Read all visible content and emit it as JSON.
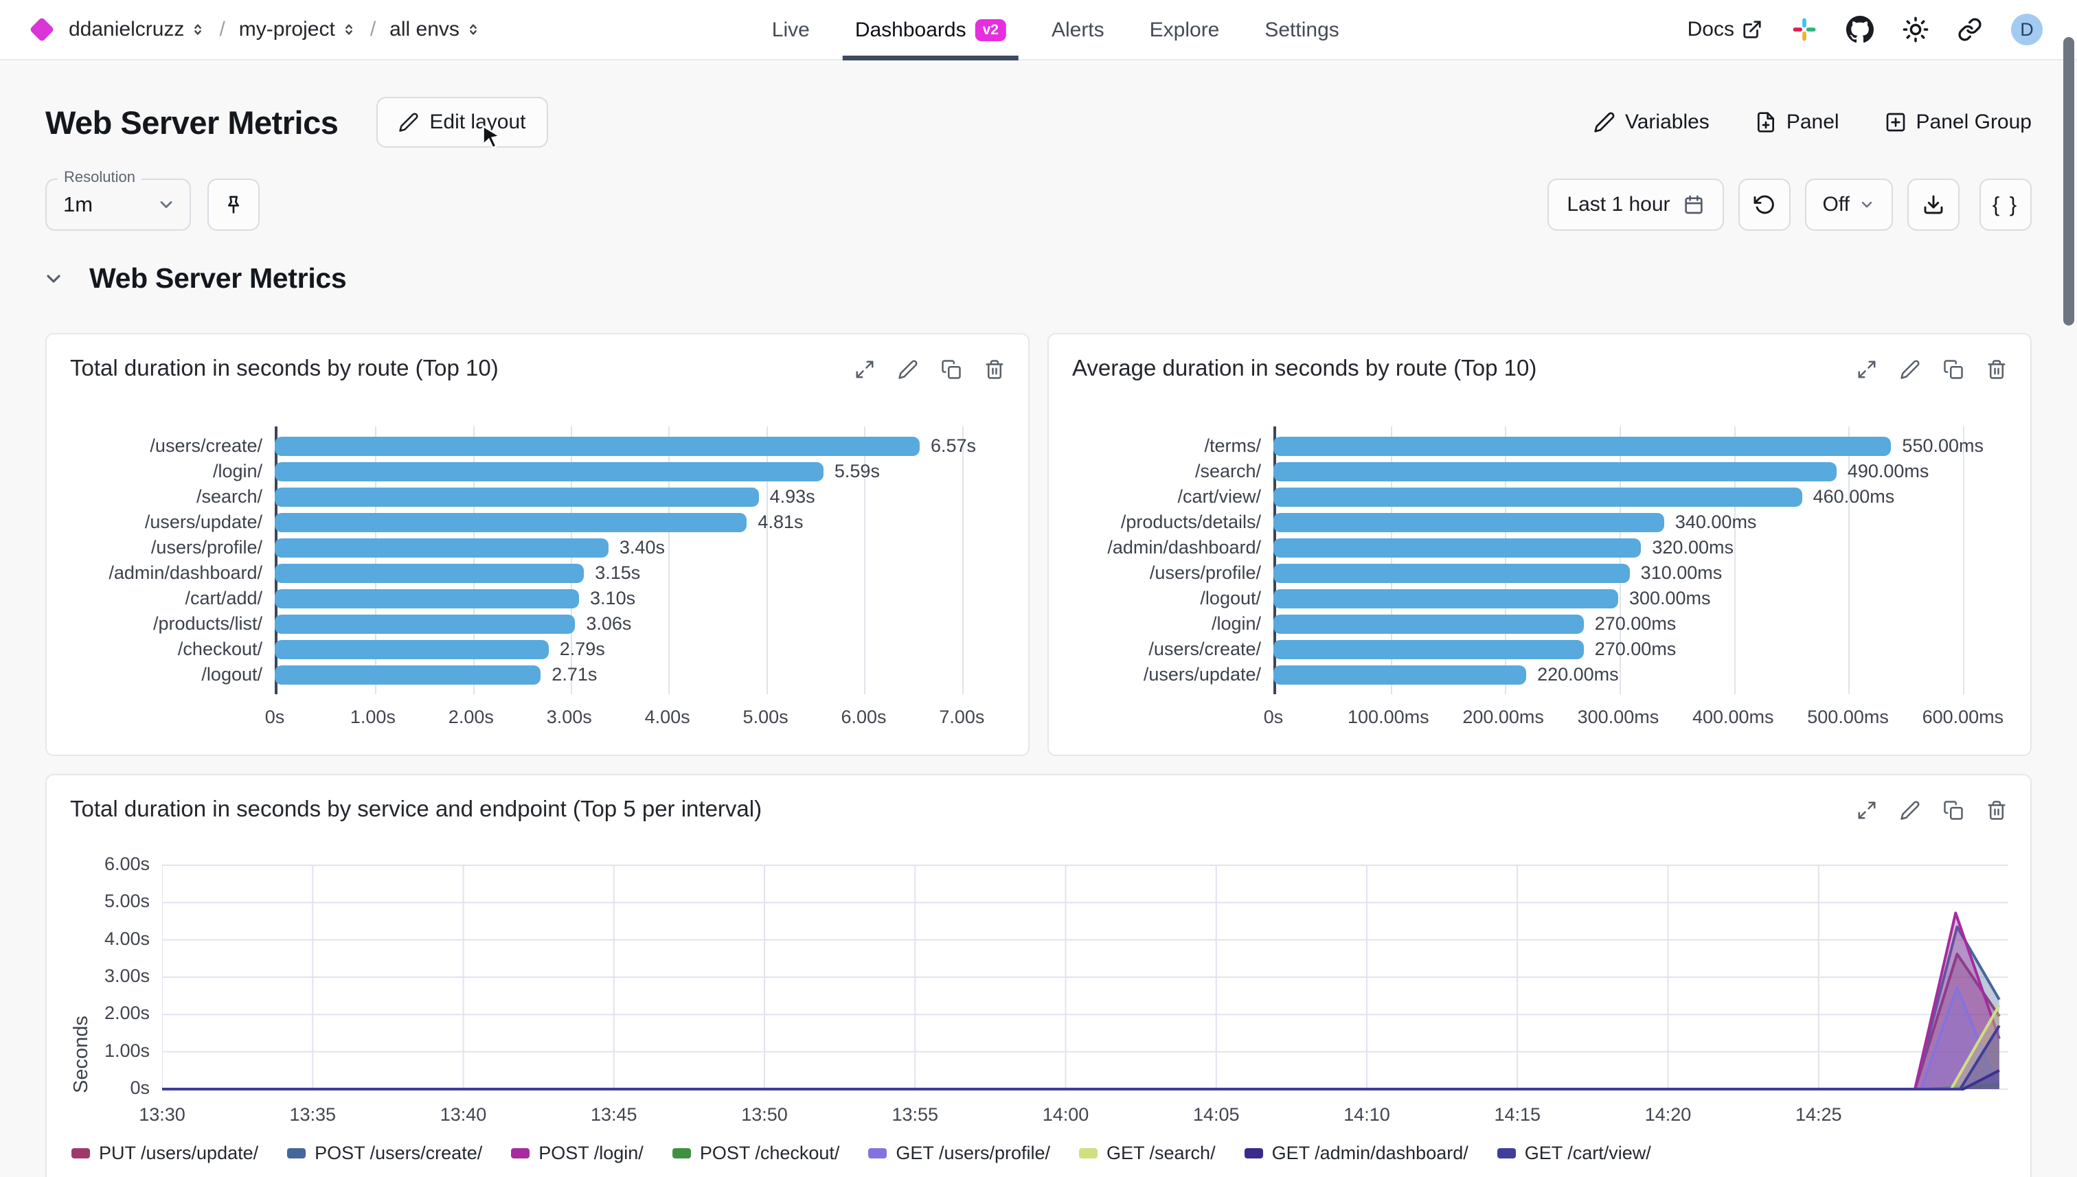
{
  "topbar": {
    "breadcrumb": {
      "org": "ddanielcruzz",
      "separator": "/",
      "project": "my-project",
      "env": "all envs"
    },
    "nav": [
      {
        "label": "Live",
        "active": false
      },
      {
        "label": "Dashboards",
        "active": true,
        "badge": "v2"
      },
      {
        "label": "Alerts",
        "active": false
      },
      {
        "label": "Explore",
        "active": false
      },
      {
        "label": "Settings",
        "active": false
      }
    ],
    "docs_label": "Docs",
    "avatar_letter": "D"
  },
  "header": {
    "title": "Web Server Metrics",
    "edit_layout_label": "Edit layout",
    "variables_label": "Variables",
    "panel_label": "Panel",
    "panel_group_label": "Panel Group"
  },
  "controls": {
    "resolution_label": "Resolution",
    "resolution_value": "1m",
    "time_range_label": "Last 1 hour",
    "refresh_mode_label": "Off",
    "braces_label": "{ }"
  },
  "section": {
    "title": "Web Server Metrics"
  },
  "icons": {
    "logo": "magenta-diamond",
    "selector": "chevrons-up-down",
    "docs": "external-link",
    "community": "slack-icon",
    "source": "github-icon",
    "theme": "sun-icon",
    "share": "link-icon",
    "panel_actions": [
      "expand-icon",
      "edit-icon",
      "copy-icon",
      "trash-icon"
    ]
  },
  "colors": {
    "bar_blue": "#57a9de",
    "badge_magenta": "#e62ee0",
    "logo_magenta": "#d935d9",
    "active_underline": "#3e4a5d",
    "axis_dark": "#3a4659",
    "gridline": "#e0e3e9",
    "card_border": "#e5e7eb",
    "page_bg": "#f8f8f9",
    "avatar_bg": "#a3cbf1"
  },
  "chart_data": [
    {
      "type": "bar",
      "orientation": "horizontal",
      "title": "Total duration in seconds by route (Top 10)",
      "categories": [
        "/users/create/",
        "/login/",
        "/search/",
        "/users/update/",
        "/users/profile/",
        "/admin/dashboard/",
        "/cart/add/",
        "/products/list/",
        "/checkout/",
        "/logout/"
      ],
      "values": [
        6.57,
        5.59,
        4.93,
        4.81,
        3.4,
        3.15,
        3.1,
        3.06,
        2.79,
        2.71
      ],
      "value_labels": [
        "6.57s",
        "5.59s",
        "4.93s",
        "4.81s",
        "3.40s",
        "3.15s",
        "3.10s",
        "3.06s",
        "2.79s",
        "2.71s"
      ],
      "xticks": [
        {
          "label": "0s",
          "value": 0
        },
        {
          "label": "1.00s",
          "value": 1
        },
        {
          "label": "2.00s",
          "value": 2
        },
        {
          "label": "3.00s",
          "value": 3
        },
        {
          "label": "4.00s",
          "value": 4
        },
        {
          "label": "5.00s",
          "value": 5
        },
        {
          "label": "6.00s",
          "value": 6
        },
        {
          "label": "7.00s",
          "value": 7
        }
      ],
      "xmax": 7.2,
      "bar_color": "#57a9de",
      "grid": true
    },
    {
      "type": "bar",
      "orientation": "horizontal",
      "title": "Average duration in seconds by route (Top 10)",
      "categories": [
        "/terms/",
        "/search/",
        "/cart/view/",
        "/products/details/",
        "/admin/dashboard/",
        "/users/profile/",
        "/logout/",
        "/login/",
        "/users/create/",
        "/users/update/"
      ],
      "values": [
        550,
        490,
        460,
        340,
        320,
        310,
        300,
        270,
        270,
        220
      ],
      "value_labels": [
        "550.00ms",
        "490.00ms",
        "460.00ms",
        "340.00ms",
        "320.00ms",
        "310.00ms",
        "300.00ms",
        "270.00ms",
        "270.00ms",
        "220.00ms"
      ],
      "xticks": [
        {
          "label": "0s",
          "value": 0
        },
        {
          "label": "100.00ms",
          "value": 100
        },
        {
          "label": "200.00ms",
          "value": 200
        },
        {
          "label": "300.00ms",
          "value": 300
        },
        {
          "label": "400.00ms",
          "value": 400
        },
        {
          "label": "500.00ms",
          "value": 500
        },
        {
          "label": "600.00ms",
          "value": 600
        }
      ],
      "xmax": 618,
      "bar_color": "#57a9de",
      "grid": true
    },
    {
      "type": "area",
      "title": "Total duration in seconds by service and endpoint (Top 5 per interval)",
      "ylabel": "Seconds",
      "ylim": [
        0,
        6
      ],
      "yticks": [
        {
          "label": "0s",
          "value": 0
        },
        {
          "label": "1.00s",
          "value": 1
        },
        {
          "label": "2.00s",
          "value": 2
        },
        {
          "label": "3.00s",
          "value": 3
        },
        {
          "label": "4.00s",
          "value": 4
        },
        {
          "label": "5.00s",
          "value": 5
        },
        {
          "label": "6.00s",
          "value": 6
        }
      ],
      "xticks": [
        {
          "label": "13:30",
          "minutes": 0
        },
        {
          "label": "13:35",
          "minutes": 5
        },
        {
          "label": "13:40",
          "minutes": 10
        },
        {
          "label": "13:45",
          "minutes": 15
        },
        {
          "label": "13:50",
          "minutes": 20
        },
        {
          "label": "13:55",
          "minutes": 25
        },
        {
          "label": "14:00",
          "minutes": 30
        },
        {
          "label": "14:05",
          "minutes": 35
        },
        {
          "label": "14:10",
          "minutes": 40
        },
        {
          "label": "14:15",
          "minutes": 45
        },
        {
          "label": "14:20",
          "minutes": 50
        },
        {
          "label": "14:25",
          "minutes": 55
        }
      ],
      "xlim_minutes": [
        0,
        61.3
      ],
      "grid": true,
      "legend_position": "bottom",
      "series": [
        {
          "name": "PUT /users/update/",
          "color": "#9e3a6b",
          "points": [
            [
              0,
              0
            ],
            [
              58.2,
              0
            ],
            [
              59.6,
              3.62
            ],
            [
              61,
              1.95
            ]
          ]
        },
        {
          "name": "POST /users/create/",
          "color": "#44679b",
          "points": [
            [
              0,
              0
            ],
            [
              58.2,
              0
            ],
            [
              59.6,
              4.35
            ],
            [
              61,
              2.4
            ]
          ]
        },
        {
          "name": "POST /login/",
          "color": "#a62ba0",
          "points": [
            [
              0,
              0
            ],
            [
              58.2,
              0
            ],
            [
              59.55,
              4.72
            ],
            [
              61,
              1.35
            ]
          ]
        },
        {
          "name": "POST /checkout/",
          "color": "#3f9142",
          "points": [
            [
              0,
              0
            ],
            [
              58.6,
              0
            ],
            [
              61,
              0.12
            ]
          ]
        },
        {
          "name": "GET /users/profile/",
          "color": "#8672dc",
          "points": [
            [
              0,
              0
            ],
            [
              58.4,
              0
            ],
            [
              59.6,
              2.72
            ],
            [
              60.9,
              0.15
            ]
          ]
        },
        {
          "name": "GET /search/",
          "color": "#cfe081",
          "points": [
            [
              0,
              0
            ],
            [
              59.4,
              0
            ],
            [
              61,
              2.25
            ]
          ]
        },
        {
          "name": "GET /admin/dashboard/",
          "color": "#392a8c",
          "points": [
            [
              0,
              0
            ],
            [
              59.8,
              0
            ],
            [
              61,
              0.5
            ]
          ]
        },
        {
          "name": "GET /cart/view/",
          "color": "#403d9b",
          "points": [
            [
              0,
              0
            ],
            [
              59.7,
              0
            ],
            [
              61,
              1.7
            ]
          ]
        }
      ]
    }
  ]
}
